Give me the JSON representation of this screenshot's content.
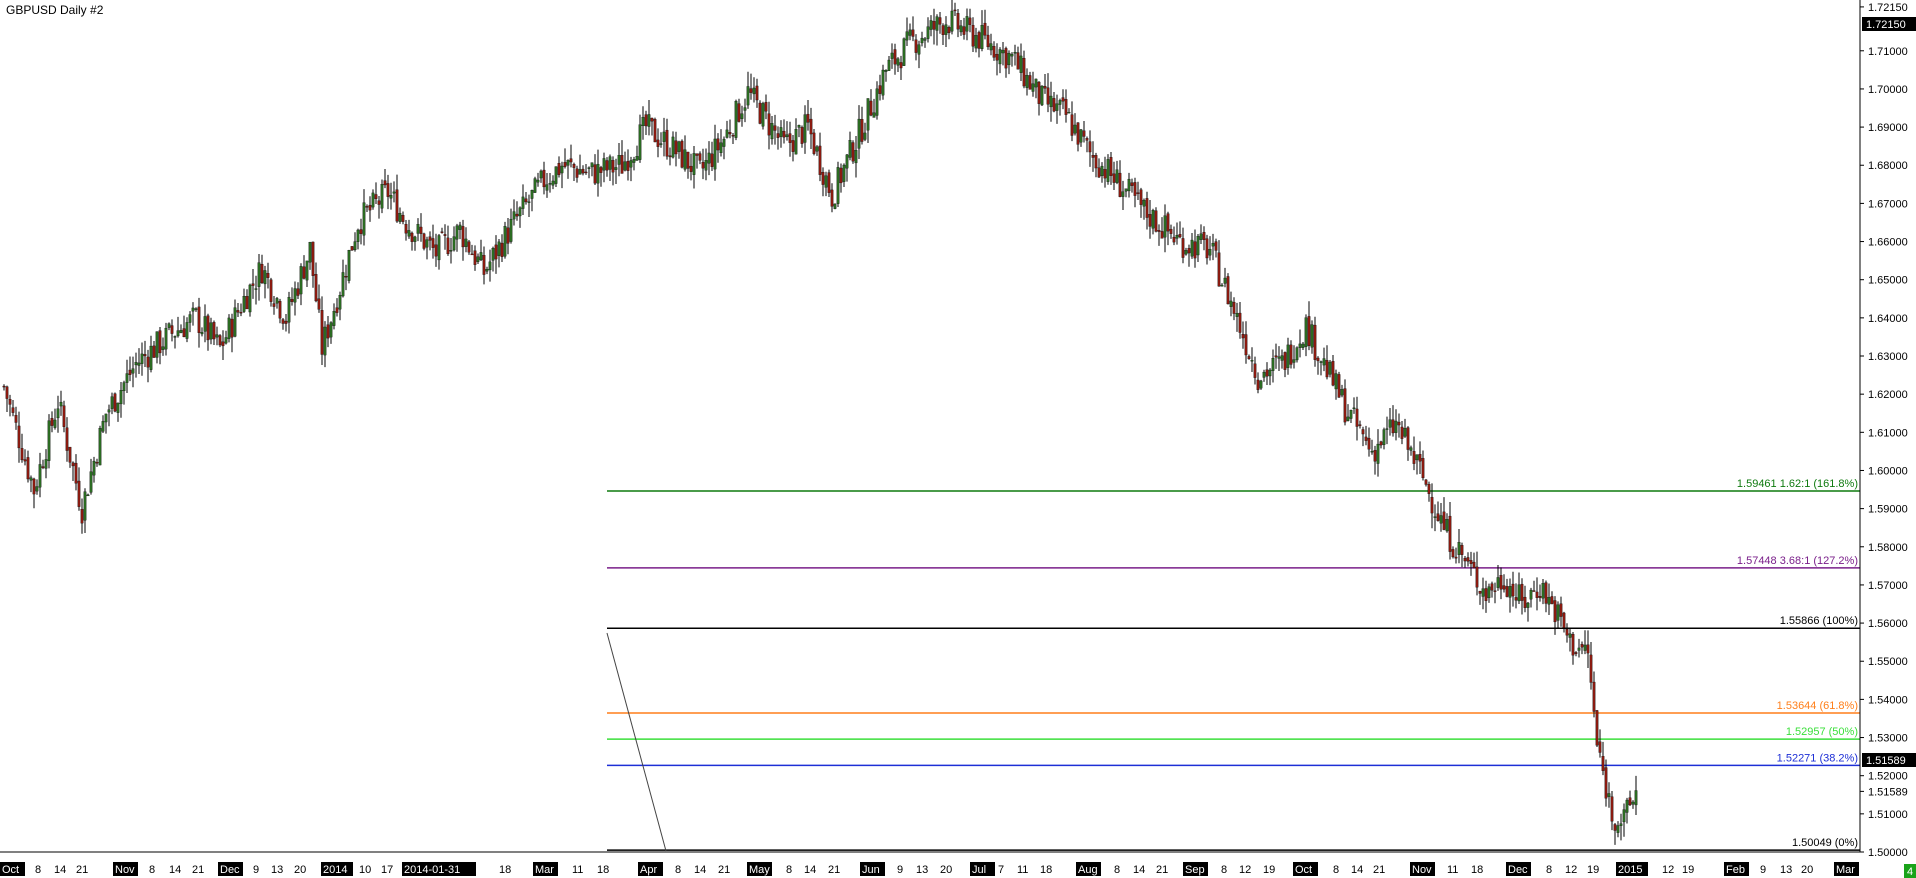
{
  "title": "GBPUSD  Daily  #2",
  "corner_badge": "4",
  "current_price": "1.51589",
  "high_marker": "1.72150",
  "colors": {
    "background": "#ffffff",
    "bull": "#2b6b22",
    "bear": "#8a1a10",
    "wick": "#000000",
    "badge": "#1aa31a",
    "tag_bg": "#000000",
    "tag_fg": "#ffffff"
  },
  "chart_data": {
    "type": "candlestick",
    "ylim": [
      1.5,
      1.722
    ],
    "y_ticks": [
      "1.72150",
      "1.71000",
      "1.70000",
      "1.69000",
      "1.68000",
      "1.67000",
      "1.66000",
      "1.65000",
      "1.64000",
      "1.63000",
      "1.62000",
      "1.61000",
      "1.60000",
      "1.59000",
      "1.58000",
      "1.57000",
      "1.56000",
      "1.55000",
      "1.54000",
      "1.53000",
      "1.52000",
      "1.51589",
      "1.51000",
      "1.50000"
    ],
    "x_labels": [
      {
        "text": "Oct",
        "highlight": true
      },
      {
        "text": "8",
        "highlight": false
      },
      {
        "text": "14",
        "highlight": false
      },
      {
        "text": "21",
        "highlight": false
      },
      {
        "text": "Nov",
        "highlight": true
      },
      {
        "text": "8",
        "highlight": false
      },
      {
        "text": "14",
        "highlight": false
      },
      {
        "text": "21",
        "highlight": false
      },
      {
        "text": "Dec",
        "highlight": true
      },
      {
        "text": "9",
        "highlight": false
      },
      {
        "text": "13",
        "highlight": false
      },
      {
        "text": "20",
        "highlight": false
      },
      {
        "text": "2014",
        "highlight": true
      },
      {
        "text": "10",
        "highlight": false
      },
      {
        "text": "17",
        "highlight": false
      },
      {
        "text": "2014-01-31",
        "highlight": true
      },
      {
        "text": "18",
        "highlight": false
      },
      {
        "text": "Mar",
        "highlight": true
      },
      {
        "text": "11",
        "highlight": false
      },
      {
        "text": "18",
        "highlight": false
      },
      {
        "text": "Apr",
        "highlight": true
      },
      {
        "text": "8",
        "highlight": false
      },
      {
        "text": "14",
        "highlight": false
      },
      {
        "text": "21",
        "highlight": false
      },
      {
        "text": "May",
        "highlight": true
      },
      {
        "text": "8",
        "highlight": false
      },
      {
        "text": "14",
        "highlight": false
      },
      {
        "text": "21",
        "highlight": false
      },
      {
        "text": "Jun",
        "highlight": true
      },
      {
        "text": "9",
        "highlight": false
      },
      {
        "text": "13",
        "highlight": false
      },
      {
        "text": "20",
        "highlight": false
      },
      {
        "text": "Jul",
        "highlight": true
      },
      {
        "text": "7",
        "highlight": false
      },
      {
        "text": "11",
        "highlight": false
      },
      {
        "text": "18",
        "highlight": false
      },
      {
        "text": "Aug",
        "highlight": true
      },
      {
        "text": "8",
        "highlight": false
      },
      {
        "text": "14",
        "highlight": false
      },
      {
        "text": "21",
        "highlight": false
      },
      {
        "text": "Sep",
        "highlight": true
      },
      {
        "text": "8",
        "highlight": false
      },
      {
        "text": "12",
        "highlight": false
      },
      {
        "text": "19",
        "highlight": false
      },
      {
        "text": "Oct",
        "highlight": true
      },
      {
        "text": "8",
        "highlight": false
      },
      {
        "text": "14",
        "highlight": false
      },
      {
        "text": "21",
        "highlight": false
      },
      {
        "text": "Nov",
        "highlight": true
      },
      {
        "text": "11",
        "highlight": false
      },
      {
        "text": "18",
        "highlight": false
      },
      {
        "text": "Dec",
        "highlight": true
      },
      {
        "text": "8",
        "highlight": false
      },
      {
        "text": "12",
        "highlight": false
      },
      {
        "text": "19",
        "highlight": false
      },
      {
        "text": "2015",
        "highlight": true
      },
      {
        "text": "12",
        "highlight": false
      },
      {
        "text": "19",
        "highlight": false
      },
      {
        "text": "Feb",
        "highlight": true
      },
      {
        "text": "9",
        "highlight": false
      },
      {
        "text": "13",
        "highlight": false
      },
      {
        "text": "20",
        "highlight": false
      },
      {
        "text": "Mar",
        "highlight": true
      }
    ],
    "price_path": [
      [
        0,
        1.622
      ],
      [
        10,
        1.595
      ],
      [
        18,
        1.618
      ],
      [
        26,
        1.59
      ],
      [
        34,
        1.615
      ],
      [
        44,
        1.628
      ],
      [
        56,
        1.636
      ],
      [
        64,
        1.64
      ],
      [
        72,
        1.632
      ],
      [
        80,
        1.645
      ],
      [
        86,
        1.653
      ],
      [
        94,
        1.64
      ],
      [
        102,
        1.658
      ],
      [
        106,
        1.632
      ],
      [
        112,
        1.648
      ],
      [
        118,
        1.665
      ],
      [
        128,
        1.673
      ],
      [
        134,
        1.665
      ],
      [
        144,
        1.657
      ],
      [
        152,
        1.663
      ],
      [
        160,
        1.652
      ],
      [
        170,
        1.665
      ],
      [
        180,
        1.676
      ],
      [
        186,
        1.68
      ],
      [
        196,
        1.678
      ],
      [
        206,
        1.68
      ],
      [
        214,
        1.69
      ],
      [
        222,
        1.685
      ],
      [
        232,
        1.678
      ],
      [
        240,
        1.687
      ],
      [
        248,
        1.699
      ],
      [
        260,
        1.685
      ],
      [
        268,
        1.69
      ],
      [
        276,
        1.672
      ],
      [
        286,
        1.69
      ],
      [
        294,
        1.705
      ],
      [
        302,
        1.712
      ],
      [
        314,
        1.718
      ],
      [
        326,
        1.713
      ],
      [
        336,
        1.708
      ],
      [
        346,
        1.697
      ],
      [
        354,
        1.693
      ],
      [
        362,
        1.683
      ],
      [
        372,
        1.675
      ],
      [
        380,
        1.668
      ],
      [
        392,
        1.66
      ],
      [
        402,
        1.658
      ],
      [
        410,
        1.642
      ],
      [
        418,
        1.625
      ],
      [
        426,
        1.628
      ],
      [
        434,
        1.638
      ],
      [
        440,
        1.628
      ],
      [
        448,
        1.615
      ],
      [
        456,
        1.605
      ],
      [
        464,
        1.612
      ],
      [
        472,
        1.6
      ],
      [
        480,
        1.585
      ],
      [
        488,
        1.575
      ],
      [
        494,
        1.568
      ],
      [
        500,
        1.572
      ],
      [
        506,
        1.565
      ],
      [
        512,
        1.57
      ],
      [
        518,
        1.562
      ],
      [
        522,
        1.555
      ],
      [
        528,
        1.552
      ],
      [
        531,
        1.528
      ],
      [
        536,
        1.51
      ],
      [
        540,
        1.508
      ],
      [
        544,
        1.516
      ]
    ],
    "levels": [
      {
        "value": 1.59461,
        "label": "1.59461  1.62:1  (161.8%)",
        "color": "#0f7a0f"
      },
      {
        "value": 1.57448,
        "label": "1.57448  3.68:1  (127.2%)",
        "color": "#7a1f8a"
      },
      {
        "value": 1.55866,
        "label": "1.55866  (100%)",
        "color": "#000000"
      },
      {
        "value": 1.53644,
        "label": "1.53644  (61.8%)",
        "color": "#ff7f1a"
      },
      {
        "value": 1.52957,
        "label": "1.52957  (50%)",
        "color": "#3adf3a"
      },
      {
        "value": 1.52271,
        "label": "1.52271  (38.2%)",
        "color": "#1d2fd6"
      },
      {
        "value": 1.50049,
        "label": "1.50049  (0%)",
        "color": "#000000"
      }
    ]
  }
}
